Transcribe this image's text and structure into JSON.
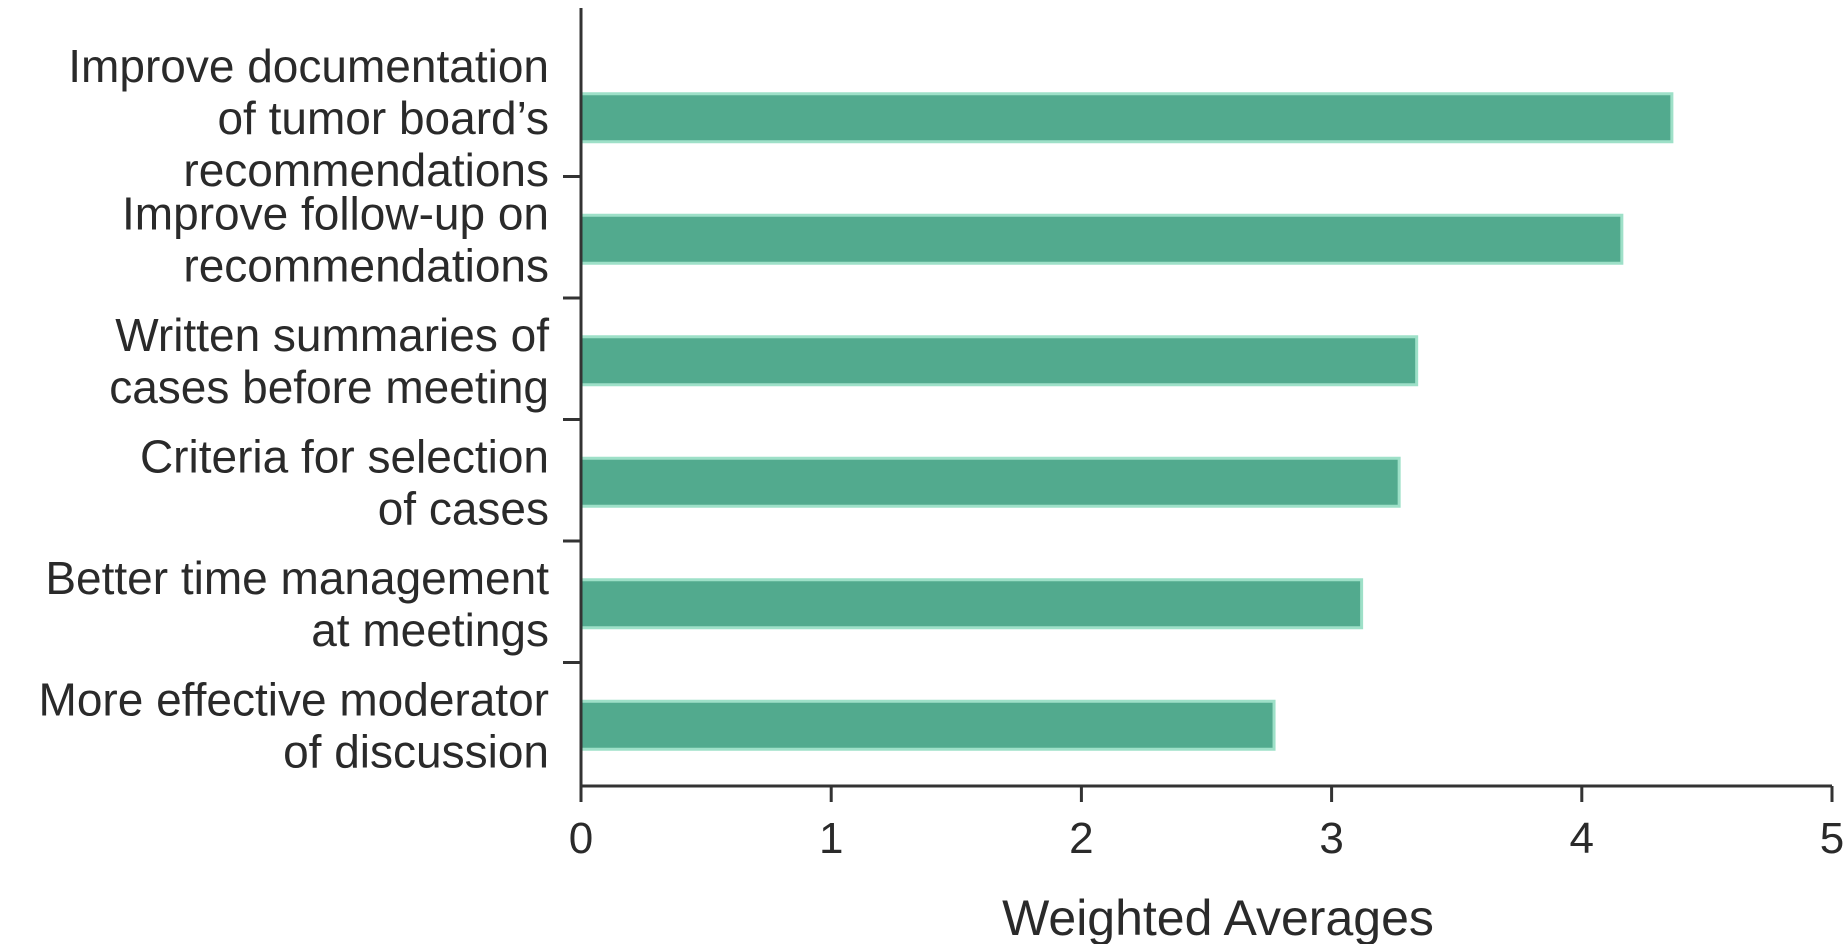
{
  "chart_data": {
    "type": "bar",
    "orientation": "horizontal",
    "categories": [
      [
        "Improve documentation",
        "of tumor board’s",
        "recommendations"
      ],
      [
        "Improve follow-up on",
        "recommendations"
      ],
      [
        "Written summaries of",
        "cases before meeting"
      ],
      [
        "Criteria for selection",
        "of cases"
      ],
      [
        "Better time management",
        "at meetings"
      ],
      [
        "More effective moderator",
        "of discussion"
      ]
    ],
    "values": [
      4.36,
      4.16,
      3.34,
      3.27,
      3.12,
      2.77
    ],
    "xlabel": "Weighted Averages",
    "ylabel": "",
    "title": "",
    "xlim": [
      0,
      5
    ],
    "xticks": [
      "0",
      "1",
      "2",
      "3",
      "4",
      "5"
    ],
    "grid": false,
    "legend": "none",
    "bar_color": "#52aa8e",
    "bar_edge_color": "#9ee0c8",
    "axis_color": "#333333"
  }
}
